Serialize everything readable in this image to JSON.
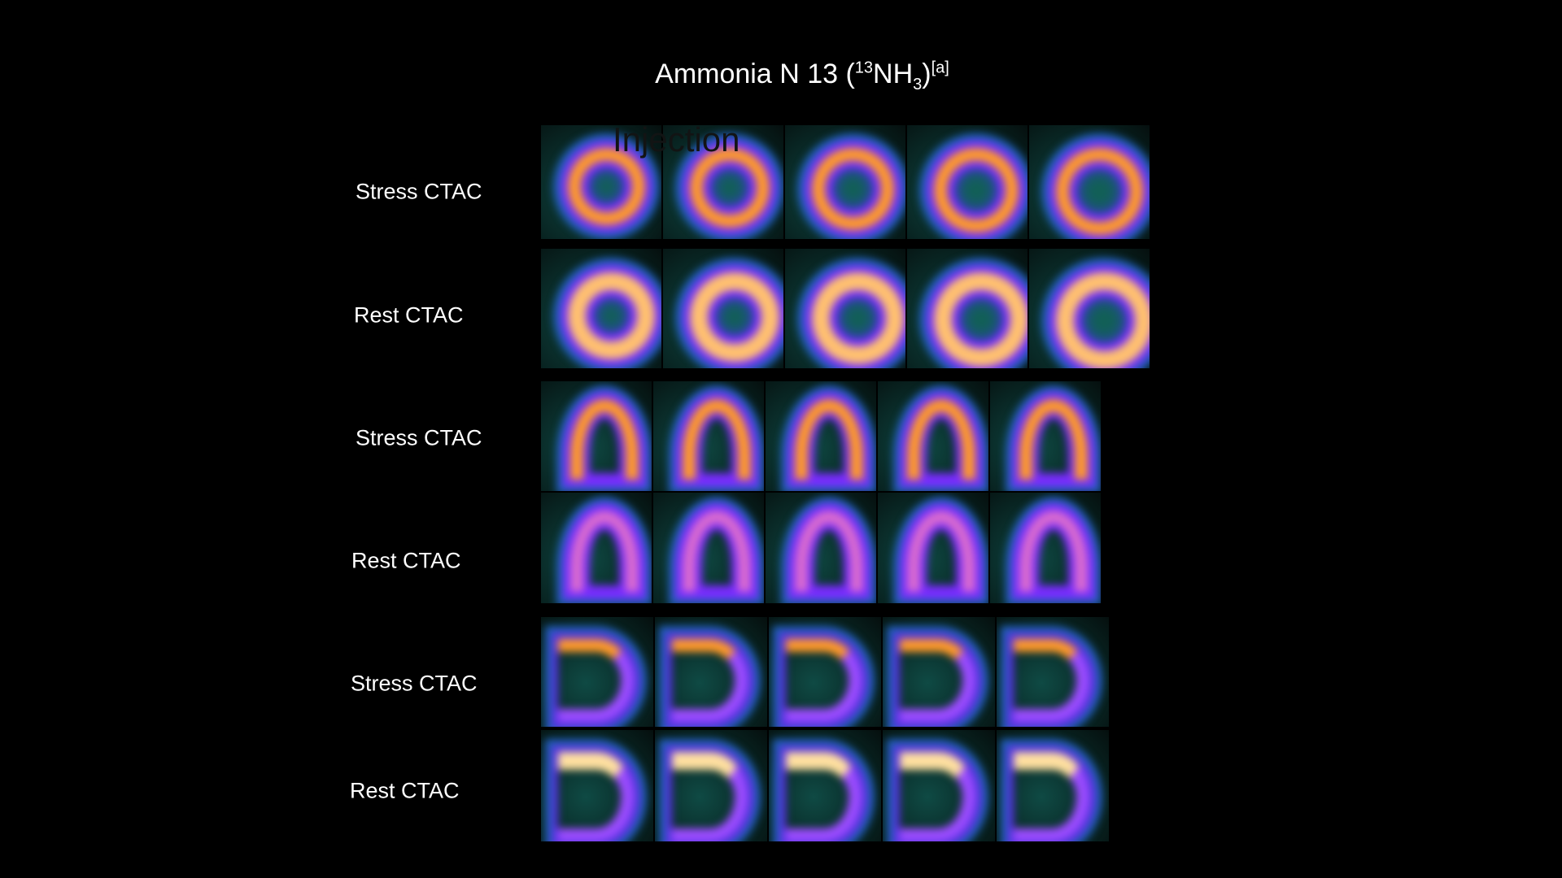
{
  "title": {
    "main": "Ammonia N 13 (",
    "sup1": "13",
    "mid": "NH",
    "sub": "3",
    "close": ")",
    "sup2": "[a]"
  },
  "overlay_text": "Injection",
  "rows": [
    {
      "label": "Stress CTAC",
      "view": "short-axis",
      "phase": "stress"
    },
    {
      "label": "Rest CTAC",
      "view": "short-axis",
      "phase": "rest"
    },
    {
      "label": "Stress CTAC",
      "view": "vertical-long-axis",
      "phase": "stress"
    },
    {
      "label": "Rest CTAC",
      "view": "vertical-long-axis",
      "phase": "rest"
    },
    {
      "label": "Stress CTAC",
      "view": "horizontal-long-axis",
      "phase": "stress"
    },
    {
      "label": "Rest CTAC",
      "view": "horizontal-long-axis",
      "phase": "rest"
    }
  ]
}
